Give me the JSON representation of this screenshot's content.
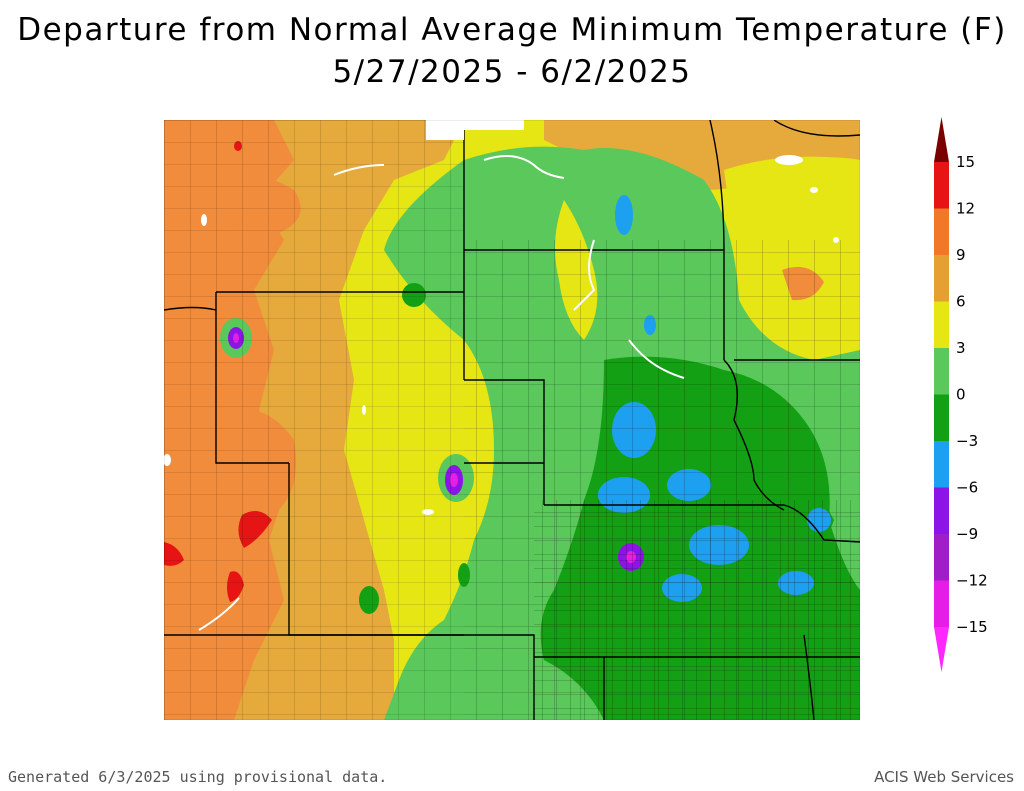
{
  "title": {
    "line1": "Departure from Normal Average Minimum Temperature (F)",
    "line2": "5/27/2025 - 6/2/2025"
  },
  "legend": {
    "bins": [
      {
        "from": -15,
        "to": -12,
        "color": "#e51ee5"
      },
      {
        "from": -12,
        "to": -9,
        "color": "#a01ec8"
      },
      {
        "from": -9,
        "to": -6,
        "color": "#8c14e6"
      },
      {
        "from": -6,
        "to": -3,
        "color": "#1ea0f0"
      },
      {
        "from": -3,
        "to": 0,
        "color": "#14a014"
      },
      {
        "from": 0,
        "to": 3,
        "color": "#5ac85a"
      },
      {
        "from": 3,
        "to": 6,
        "color": "#e6e614"
      },
      {
        "from": 6,
        "to": 9,
        "color": "#e6a032"
      },
      {
        "from": 9,
        "to": 12,
        "color": "#f07828"
      },
      {
        "from": 12,
        "to": 15,
        "color": "#e61414"
      },
      {
        "from": 15,
        "to": 18,
        "color": "#b40a0a"
      }
    ],
    "tick_labels": [
      "15",
      "12",
      "9",
      "6",
      "3",
      "0",
      "−3",
      "−6",
      "−9",
      "−12",
      "−15"
    ],
    "top_cap_color": "#780000",
    "bottom_cap_color": "#ff28ff"
  },
  "map": {
    "colors": {
      "orange": "#f08c3c",
      "light_orange": "#e6aa3c",
      "yellow": "#e6e614",
      "light_green": "#5ac85a",
      "green": "#14a014",
      "blue": "#1ea0f0",
      "purple": "#8c14e6",
      "magenta": "#e61ee6",
      "red": "#e61414",
      "water": "#ffffff",
      "border": "#000000"
    }
  },
  "footer": {
    "left": "Generated 6/3/2025 using provisional data.",
    "right": "ACIS Web Services"
  }
}
